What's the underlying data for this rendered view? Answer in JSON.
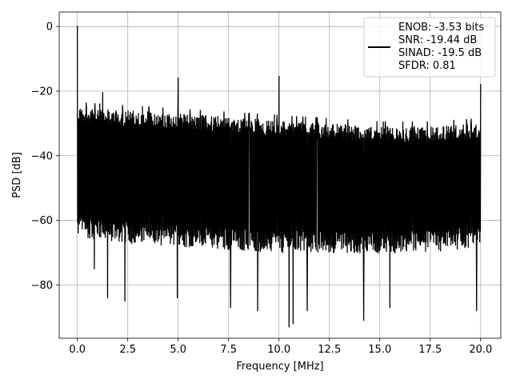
{
  "chart_data": {
    "type": "line",
    "xlabel": "Frequency [MHz]",
    "ylabel": "PSD [dB]",
    "xlim": [
      -0.9,
      21.0
    ],
    "ylim": [
      -96.5,
      4.5
    ],
    "x_ticks": [
      0.0,
      2.5,
      5.0,
      7.5,
      10.0,
      12.5,
      15.0,
      17.5,
      20.0
    ],
    "x_tick_labels": [
      "0.0",
      "2.5",
      "5.0",
      "7.5",
      "10.0",
      "12.5",
      "15.0",
      "17.5",
      "20.0"
    ],
    "y_ticks": [
      0,
      -20,
      -40,
      -60,
      -80
    ],
    "y_tick_labels": [
      "0",
      "−20",
      "−40",
      "−60",
      "−80"
    ],
    "grid": true,
    "legend_position": "top-right",
    "legend_lines": [
      "ENOB: -3.53 bits",
      "SNR: -19.44 dB",
      "SINAD: -19.5 dB",
      "SFDR: 0.81"
    ],
    "series": [
      {
        "color": "#000000",
        "x_range_mhz": [
          0.0,
          20.0
        ],
        "noise_floor_upper_db": [
          [
            0.0,
            -25
          ],
          [
            2.5,
            -26
          ],
          [
            5.0,
            -27
          ],
          [
            7.5,
            -28
          ],
          [
            10.0,
            -29
          ],
          [
            12.5,
            -30
          ],
          [
            15.0,
            -31
          ],
          [
            17.5,
            -31
          ],
          [
            20.0,
            -30
          ]
        ],
        "noise_floor_lower_db": [
          [
            0.0,
            -63
          ],
          [
            2.5,
            -65
          ],
          [
            5.0,
            -66
          ],
          [
            7.5,
            -67
          ],
          [
            10.0,
            -68
          ],
          [
            12.5,
            -68
          ],
          [
            15.0,
            -68
          ],
          [
            17.5,
            -68
          ],
          [
            20.0,
            -66
          ]
        ],
        "peaks": [
          {
            "x": 0.0,
            "y": 0.0
          },
          {
            "x": 1.25,
            "y": -20.5
          },
          {
            "x": 5.0,
            "y": -16.0
          },
          {
            "x": 10.0,
            "y": -15.5
          },
          {
            "x": 20.0,
            "y": -18.0
          }
        ],
        "deep_dips": [
          {
            "x": 0.85,
            "y": -75
          },
          {
            "x": 1.5,
            "y": -84
          },
          {
            "x": 2.35,
            "y": -85
          },
          {
            "x": 4.95,
            "y": -84
          },
          {
            "x": 7.6,
            "y": -87
          },
          {
            "x": 8.95,
            "y": -88
          },
          {
            "x": 10.5,
            "y": -93
          },
          {
            "x": 10.7,
            "y": -92
          },
          {
            "x": 11.4,
            "y": -88
          },
          {
            "x": 14.2,
            "y": -91
          },
          {
            "x": 15.5,
            "y": -87
          },
          {
            "x": 19.8,
            "y": -88
          }
        ]
      }
    ]
  }
}
